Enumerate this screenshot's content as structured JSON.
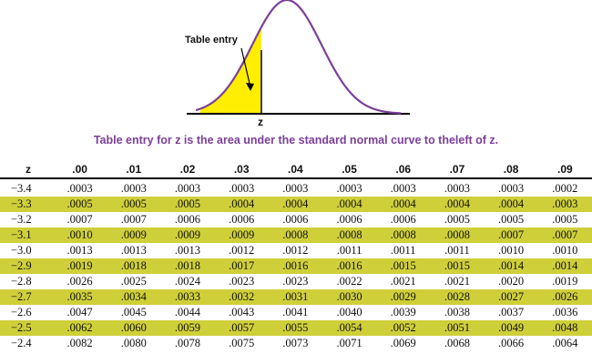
{
  "figure": {
    "table_entry_label": "Table entry",
    "z_label": "z",
    "colors": {
      "curve": "#7b3f98",
      "shade": "#ffee00",
      "axis": "#000000",
      "caption": "#7b3f98",
      "row_highlight": "#cfcf3a"
    }
  },
  "caption": "Table entry for z is the area under the standard normal curve to theleft of z.",
  "table": {
    "headers": [
      "z",
      ".00",
      ".01",
      ".02",
      ".03",
      ".04",
      ".05",
      ".06",
      ".07",
      ".08",
      ".09"
    ],
    "rows": [
      {
        "z": "−3.4",
        "values": [
          ".0003",
          ".0003",
          ".0003",
          ".0003",
          ".0003",
          ".0003",
          ".0003",
          ".0003",
          ".0003",
          ".0002"
        ],
        "shaded": false
      },
      {
        "z": "−3.3",
        "values": [
          ".0005",
          ".0005",
          ".0005",
          ".0004",
          ".0004",
          ".0004",
          ".0004",
          ".0004",
          ".0004",
          ".0003"
        ],
        "shaded": true
      },
      {
        "z": "−3.2",
        "values": [
          ".0007",
          ".0007",
          ".0006",
          ".0006",
          ".0006",
          ".0006",
          ".0006",
          ".0005",
          ".0005",
          ".0005"
        ],
        "shaded": false
      },
      {
        "z": "−3.1",
        "values": [
          ".0010",
          ".0009",
          ".0009",
          ".0009",
          ".0008",
          ".0008",
          ".0008",
          ".0008",
          ".0007",
          ".0007"
        ],
        "shaded": true
      },
      {
        "z": "−3.0",
        "values": [
          ".0013",
          ".0013",
          ".0013",
          ".0012",
          ".0012",
          ".0011",
          ".0011",
          ".0011",
          ".0010",
          ".0010"
        ],
        "shaded": false
      },
      {
        "z": "−2.9",
        "values": [
          ".0019",
          ".0018",
          ".0018",
          ".0017",
          ".0016",
          ".0016",
          ".0015",
          ".0015",
          ".0014",
          ".0014"
        ],
        "shaded": true
      },
      {
        "z": "−2.8",
        "values": [
          ".0026",
          ".0025",
          ".0024",
          ".0023",
          ".0023",
          ".0022",
          ".0021",
          ".0021",
          ".0020",
          ".0019"
        ],
        "shaded": false
      },
      {
        "z": "−2.7",
        "values": [
          ".0035",
          ".0034",
          ".0033",
          ".0032",
          ".0031",
          ".0030",
          ".0029",
          ".0028",
          ".0027",
          ".0026"
        ],
        "shaded": true
      },
      {
        "z": "−2.6",
        "values": [
          ".0047",
          ".0045",
          ".0044",
          ".0043",
          ".0041",
          ".0040",
          ".0039",
          ".0038",
          ".0037",
          ".0036"
        ],
        "shaded": false
      },
      {
        "z": "−2.5",
        "values": [
          ".0062",
          ".0060",
          ".0059",
          ".0057",
          ".0055",
          ".0054",
          ".0052",
          ".0051",
          ".0049",
          ".0048"
        ],
        "shaded": true
      },
      {
        "z": "−2.4",
        "values": [
          ".0082",
          ".0080",
          ".0078",
          ".0075",
          ".0073",
          ".0071",
          ".0069",
          ".0068",
          ".0066",
          ".0064"
        ],
        "shaded": false
      }
    ]
  }
}
